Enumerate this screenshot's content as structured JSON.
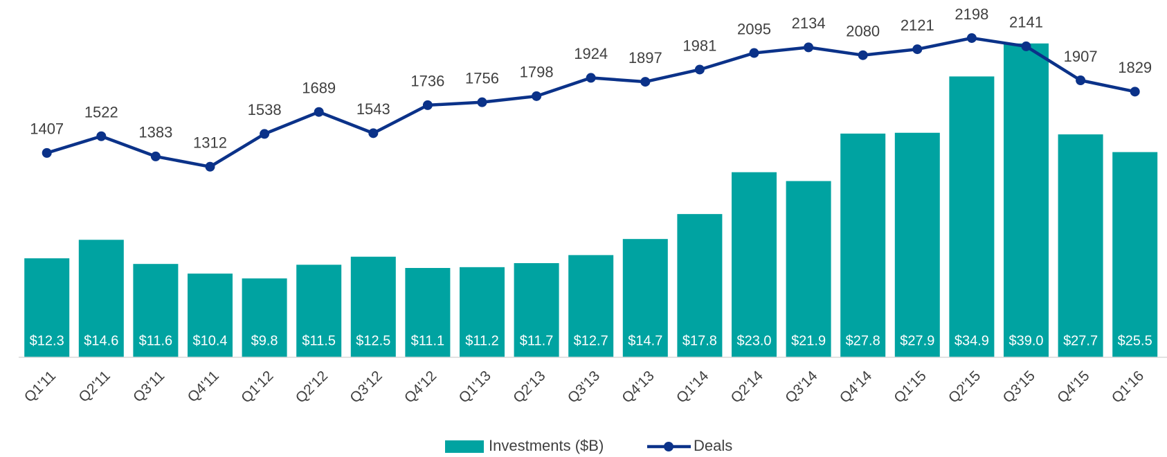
{
  "chart_data": {
    "type": "bar_line",
    "categories": [
      "Q1'11",
      "Q2'11",
      "Q3'11",
      "Q4'11",
      "Q1'12",
      "Q2'12",
      "Q3'12",
      "Q4'12",
      "Q1'13",
      "Q2'13",
      "Q3'13",
      "Q4'13",
      "Q1'14",
      "Q2'14",
      "Q3'14",
      "Q4'14",
      "Q1'15",
      "Q2'15",
      "Q3'15",
      "Q4'15",
      "Q1'16"
    ],
    "series": [
      {
        "name": "Investments ($B)",
        "type": "bar",
        "color": "#00a3a1",
        "values": [
          12.3,
          14.6,
          11.6,
          10.4,
          9.8,
          11.5,
          12.5,
          11.1,
          11.2,
          11.7,
          12.7,
          14.7,
          17.8,
          23.0,
          21.9,
          27.8,
          27.9,
          34.9,
          39.0,
          27.7,
          25.5
        ],
        "value_labels": [
          "$12.3",
          "$14.6",
          "$11.6",
          "$10.4",
          "$9.8",
          "$11.5",
          "$12.5",
          "$11.1",
          "$11.2",
          "$11.7",
          "$12.7",
          "$14.7",
          "$17.8",
          "$23.0",
          "$21.9",
          "$27.8",
          "$27.9",
          "$34.9",
          "$39.0",
          "$27.7",
          "$25.5"
        ]
      },
      {
        "name": "Deals",
        "type": "line",
        "axis": "y2",
        "color": "#0b3289",
        "values": [
          1407,
          1522,
          1383,
          1312,
          1538,
          1689,
          1543,
          1736,
          1756,
          1798,
          1924,
          1897,
          1981,
          2095,
          2134,
          2080,
          2121,
          2198,
          2141,
          1907,
          1829
        ]
      }
    ],
    "ylim": [
      0,
      44.4
    ],
    "y2lim": [
      0,
      2460
    ],
    "legend": "bottom"
  }
}
